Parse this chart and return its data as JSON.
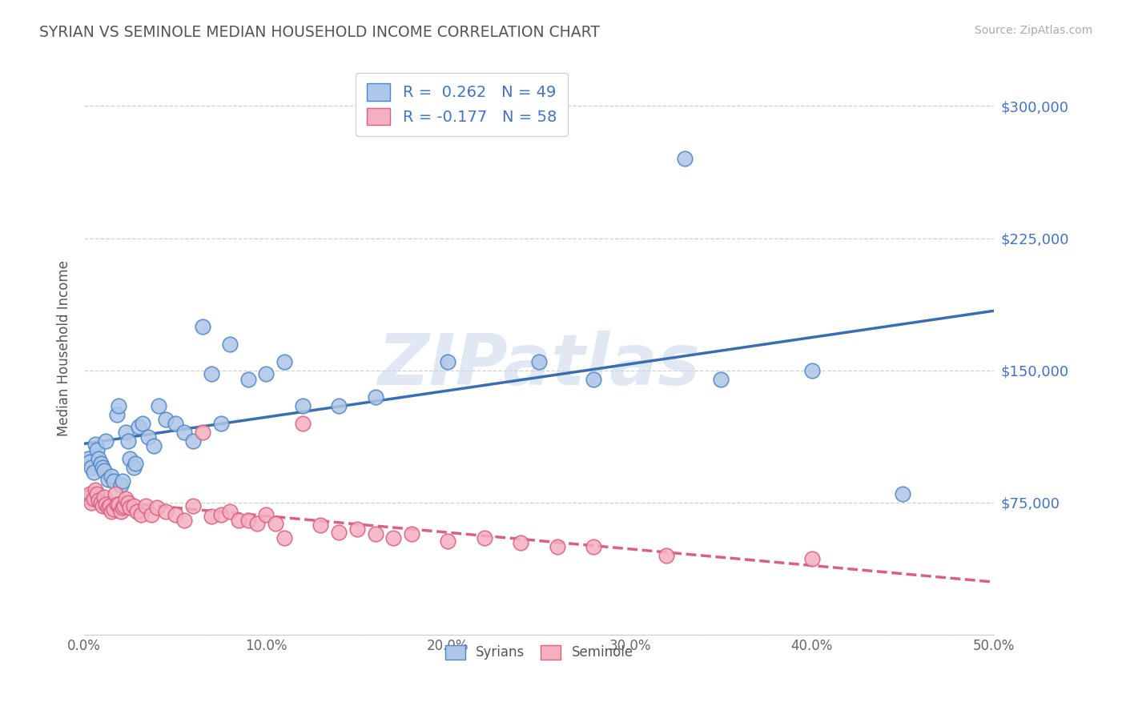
{
  "title": "SYRIAN VS SEMINOLE MEDIAN HOUSEHOLD INCOME CORRELATION CHART",
  "source": "Source: ZipAtlas.com",
  "ylabel": "Median Household Income",
  "xlim": [
    0.0,
    50.0
  ],
  "ylim": [
    0,
    325000
  ],
  "yticks": [
    0,
    75000,
    150000,
    225000,
    300000
  ],
  "ytick_labels": [
    "",
    "$75,000",
    "$150,000",
    "$225,000",
    "$300,000"
  ],
  "xticks": [
    0.0,
    10.0,
    20.0,
    30.0,
    40.0,
    50.0
  ],
  "xtick_labels": [
    "0.0%",
    "10.0%",
    "20.0%",
    "30.0%",
    "40.0%",
    "50.0%"
  ],
  "syrians_color": "#aec6e8",
  "seminole_color": "#f4afc0",
  "syrians_edge": "#4f86c6",
  "seminole_edge": "#d96080",
  "trend_blue": "#3a6eaf",
  "trend_pink": "#d96080",
  "watermark_text": "ZIPatlas",
  "legend_label_syrians": "R =  0.262   N = 49",
  "legend_label_seminole": "R = -0.177   N = 58",
  "syrians_x": [
    0.2,
    0.3,
    0.4,
    0.5,
    0.6,
    0.7,
    0.8,
    0.9,
    1.0,
    1.1,
    1.2,
    1.3,
    1.5,
    1.6,
    1.8,
    1.9,
    2.0,
    2.1,
    2.3,
    2.4,
    2.5,
    2.7,
    2.8,
    3.0,
    3.2,
    3.5,
    3.8,
    4.1,
    4.5,
    5.0,
    5.5,
    6.0,
    6.5,
    7.0,
    7.5,
    8.0,
    9.0,
    10.0,
    11.0,
    12.0,
    14.0,
    16.0,
    20.0,
    25.0,
    28.0,
    33.0,
    35.0,
    40.0,
    45.0
  ],
  "syrians_y": [
    100000,
    98000,
    95000,
    92000,
    108000,
    105000,
    100000,
    97000,
    95000,
    93000,
    110000,
    88000,
    90000,
    87000,
    125000,
    130000,
    85000,
    87000,
    115000,
    110000,
    100000,
    95000,
    97000,
    118000,
    120000,
    112000,
    107000,
    130000,
    122000,
    120000,
    115000,
    110000,
    175000,
    148000,
    120000,
    165000,
    145000,
    148000,
    155000,
    130000,
    130000,
    135000,
    155000,
    155000,
    145000,
    270000,
    145000,
    150000,
    80000
  ],
  "seminole_x": [
    0.2,
    0.3,
    0.4,
    0.5,
    0.6,
    0.7,
    0.8,
    0.9,
    1.0,
    1.1,
    1.2,
    1.3,
    1.4,
    1.5,
    1.6,
    1.7,
    1.8,
    1.9,
    2.0,
    2.1,
    2.2,
    2.3,
    2.4,
    2.5,
    2.7,
    2.9,
    3.1,
    3.4,
    3.7,
    4.0,
    4.5,
    5.0,
    5.5,
    6.0,
    6.5,
    7.0,
    7.5,
    8.0,
    8.5,
    9.0,
    9.5,
    10.0,
    10.5,
    11.0,
    12.0,
    13.0,
    14.0,
    15.0,
    16.0,
    17.0,
    18.0,
    20.0,
    22.0,
    24.0,
    26.0,
    28.0,
    32.0,
    40.0
  ],
  "seminole_y": [
    78000,
    80000,
    75000,
    77000,
    82000,
    80000,
    76000,
    75000,
    73000,
    78000,
    74000,
    72000,
    73000,
    70000,
    71000,
    80000,
    74000,
    74000,
    70000,
    72000,
    73000,
    77000,
    75000,
    72000,
    73000,
    70000,
    68000,
    73000,
    68000,
    72000,
    70000,
    68000,
    65000,
    73000,
    115000,
    67000,
    68000,
    70000,
    65000,
    65000,
    63000,
    68000,
    63000,
    55000,
    120000,
    62000,
    58000,
    60000,
    57000,
    55000,
    57000,
    53000,
    55000,
    52000,
    50000,
    50000,
    45000,
    43000
  ]
}
